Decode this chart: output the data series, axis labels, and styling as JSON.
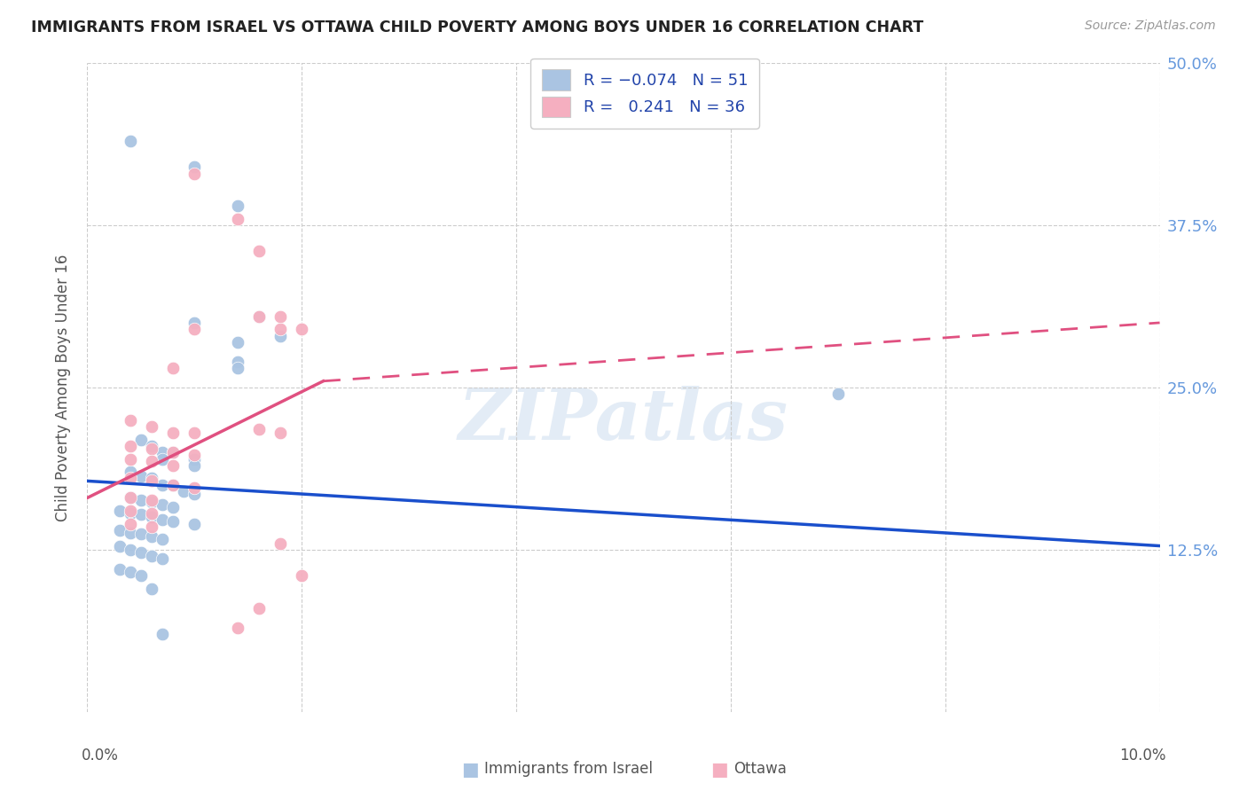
{
  "title": "IMMIGRANTS FROM ISRAEL VS OTTAWA CHILD POVERTY AMONG BOYS UNDER 16 CORRELATION CHART",
  "source": "Source: ZipAtlas.com",
  "ylabel": "Child Poverty Among Boys Under 16",
  "xlim": [
    0.0,
    0.1
  ],
  "ylim": [
    0.0,
    0.5
  ],
  "xticks": [
    0.0,
    0.02,
    0.04,
    0.06,
    0.08,
    0.1
  ],
  "ytick_labels_right": [
    "50.0%",
    "37.5%",
    "25.0%",
    "12.5%"
  ],
  "yticks_right": [
    0.5,
    0.375,
    0.25,
    0.125
  ],
  "blue_color": "#aac4e2",
  "pink_color": "#f5afc0",
  "line_blue": "#1a4fcc",
  "line_pink": "#e05080",
  "watermark": "ZIPatlas",
  "blue_R": -0.074,
  "blue_N": 51,
  "pink_R": 0.241,
  "pink_N": 36,
  "blue_points": [
    [
      0.004,
      0.44
    ],
    [
      0.01,
      0.42
    ],
    [
      0.014,
      0.39
    ],
    [
      0.01,
      0.3
    ],
    [
      0.014,
      0.285
    ],
    [
      0.014,
      0.27
    ],
    [
      0.014,
      0.265
    ],
    [
      0.016,
      0.305
    ],
    [
      0.018,
      0.29
    ],
    [
      0.005,
      0.21
    ],
    [
      0.006,
      0.205
    ],
    [
      0.007,
      0.2
    ],
    [
      0.007,
      0.195
    ],
    [
      0.008,
      0.2
    ],
    [
      0.01,
      0.195
    ],
    [
      0.01,
      0.19
    ],
    [
      0.004,
      0.185
    ],
    [
      0.005,
      0.182
    ],
    [
      0.006,
      0.18
    ],
    [
      0.007,
      0.175
    ],
    [
      0.008,
      0.175
    ],
    [
      0.009,
      0.17
    ],
    [
      0.01,
      0.168
    ],
    [
      0.004,
      0.165
    ],
    [
      0.005,
      0.163
    ],
    [
      0.006,
      0.162
    ],
    [
      0.007,
      0.16
    ],
    [
      0.008,
      0.158
    ],
    [
      0.003,
      0.155
    ],
    [
      0.004,
      0.153
    ],
    [
      0.005,
      0.152
    ],
    [
      0.006,
      0.15
    ],
    [
      0.007,
      0.148
    ],
    [
      0.008,
      0.147
    ],
    [
      0.01,
      0.145
    ],
    [
      0.003,
      0.14
    ],
    [
      0.004,
      0.138
    ],
    [
      0.005,
      0.137
    ],
    [
      0.006,
      0.135
    ],
    [
      0.007,
      0.133
    ],
    [
      0.003,
      0.128
    ],
    [
      0.004,
      0.125
    ],
    [
      0.005,
      0.123
    ],
    [
      0.006,
      0.12
    ],
    [
      0.007,
      0.118
    ],
    [
      0.003,
      0.11
    ],
    [
      0.004,
      0.108
    ],
    [
      0.005,
      0.105
    ],
    [
      0.006,
      0.095
    ],
    [
      0.007,
      0.06
    ],
    [
      0.07,
      0.245
    ]
  ],
  "pink_points": [
    [
      0.01,
      0.415
    ],
    [
      0.014,
      0.38
    ],
    [
      0.016,
      0.355
    ],
    [
      0.01,
      0.295
    ],
    [
      0.016,
      0.305
    ],
    [
      0.018,
      0.295
    ],
    [
      0.008,
      0.265
    ],
    [
      0.018,
      0.305
    ],
    [
      0.02,
      0.295
    ],
    [
      0.004,
      0.225
    ],
    [
      0.006,
      0.22
    ],
    [
      0.008,
      0.215
    ],
    [
      0.01,
      0.215
    ],
    [
      0.016,
      0.218
    ],
    [
      0.018,
      0.215
    ],
    [
      0.004,
      0.205
    ],
    [
      0.006,
      0.203
    ],
    [
      0.008,
      0.2
    ],
    [
      0.01,
      0.198
    ],
    [
      0.004,
      0.195
    ],
    [
      0.006,
      0.193
    ],
    [
      0.008,
      0.19
    ],
    [
      0.004,
      0.18
    ],
    [
      0.006,
      0.178
    ],
    [
      0.008,
      0.175
    ],
    [
      0.01,
      0.173
    ],
    [
      0.004,
      0.165
    ],
    [
      0.006,
      0.163
    ],
    [
      0.004,
      0.155
    ],
    [
      0.006,
      0.153
    ],
    [
      0.004,
      0.145
    ],
    [
      0.006,
      0.143
    ],
    [
      0.018,
      0.13
    ],
    [
      0.02,
      0.105
    ],
    [
      0.014,
      0.065
    ],
    [
      0.016,
      0.08
    ]
  ]
}
